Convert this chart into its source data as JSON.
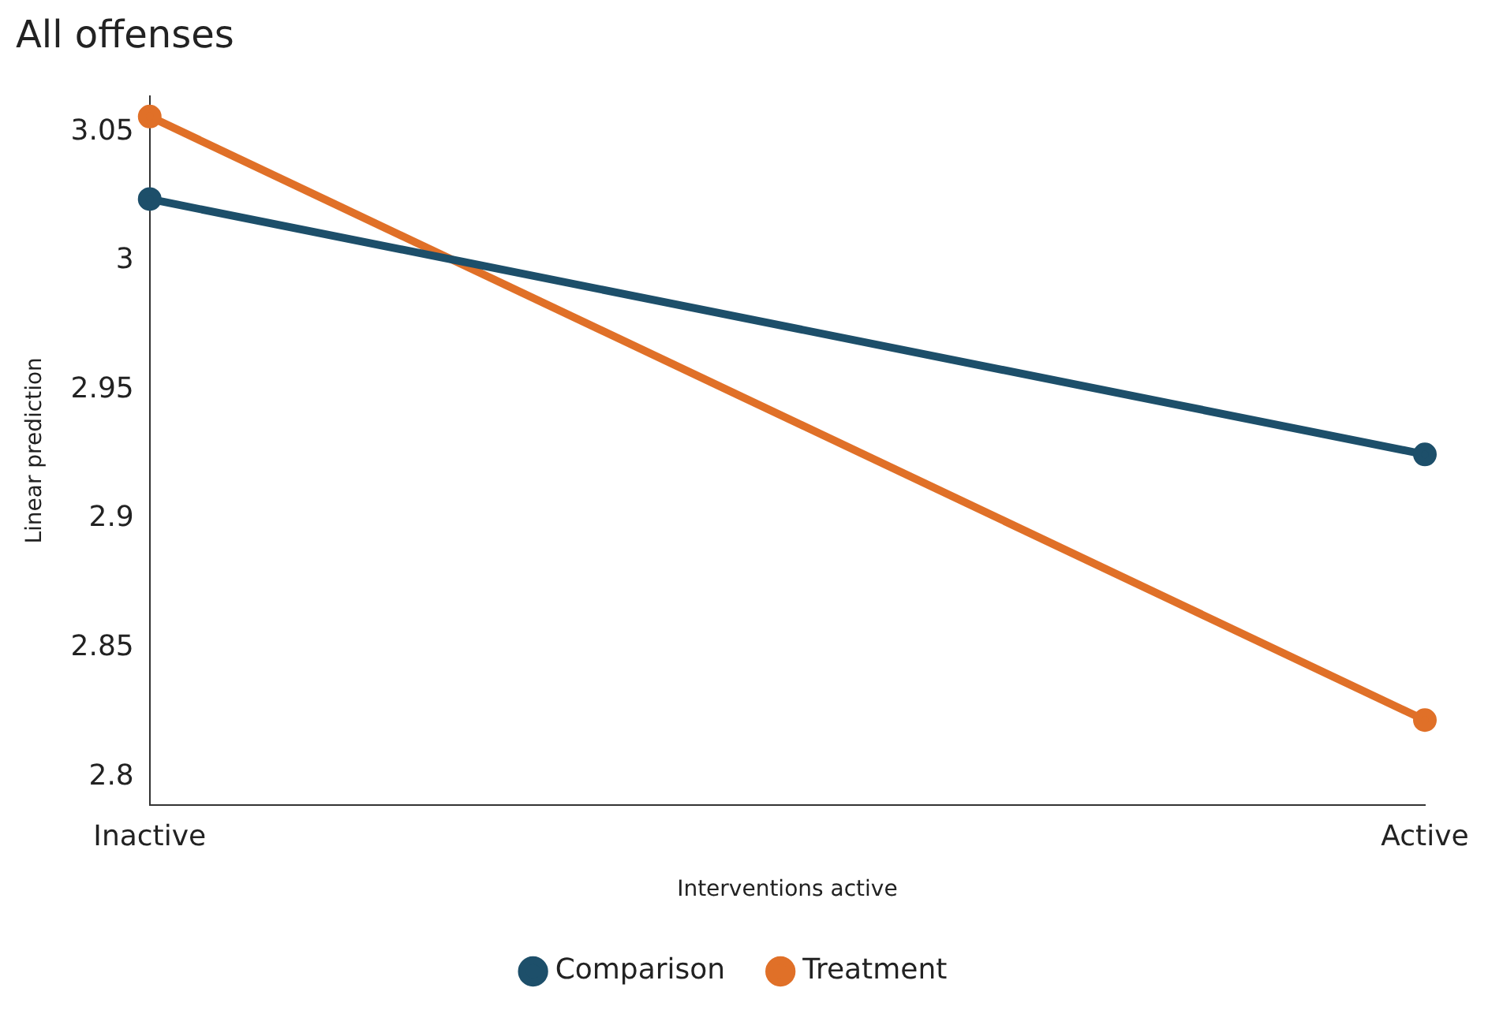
{
  "chart_data": {
    "type": "line",
    "title": "All offenses",
    "xlabel": "Interventions active",
    "ylabel": "Linear prediction",
    "categories": [
      "Inactive",
      "Active"
    ],
    "series": [
      {
        "name": "Comparison",
        "color": "#1d4f6a",
        "values": [
          3.024,
          2.925
        ]
      },
      {
        "name": "Treatment",
        "color": "#e07028",
        "values": [
          3.056,
          2.822
        ]
      }
    ],
    "ylim": [
      2.789,
      3.064
    ],
    "yticks": [
      2.8,
      2.85,
      2.9,
      2.95,
      3,
      3.05
    ],
    "grid": false,
    "legend": "bottom",
    "marker": "circle",
    "line_style": "solid"
  }
}
